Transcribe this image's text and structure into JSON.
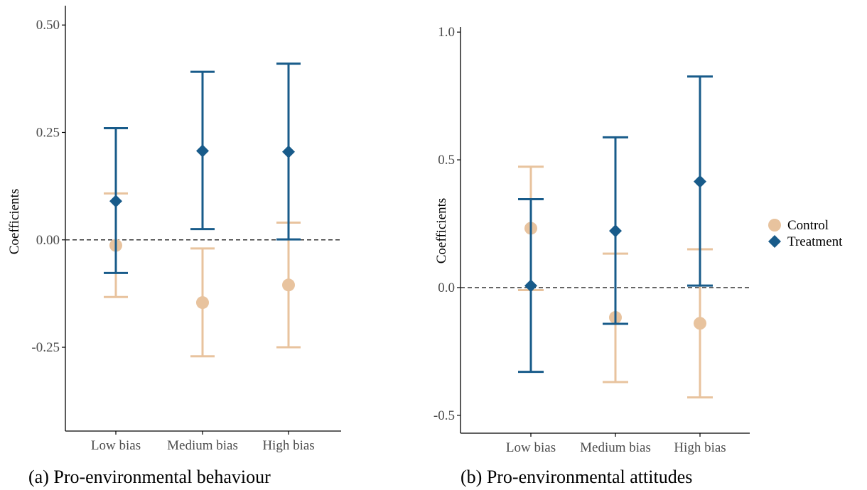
{
  "colors": {
    "control": "#e8c39e",
    "treatment": "#185b8a",
    "axis": "#000000",
    "zero_line": "#333333"
  },
  "legend": {
    "position": "right",
    "items": [
      {
        "label": "Control",
        "shape": "circle"
      },
      {
        "label": "Treatment",
        "shape": "diamond"
      }
    ]
  },
  "chart_data": [
    {
      "type": "errorbar",
      "caption": "(a) Pro-environmental behaviour",
      "xlabel": "",
      "ylabel": "Coefficients",
      "ylim": [
        -0.445,
        0.545
      ],
      "yticks": [
        0.5,
        0.25,
        0.0,
        -0.25
      ],
      "ytick_labels": [
        "0.50",
        "0.25",
        "0.00",
        "-0.25"
      ],
      "categories": [
        "Low bias",
        "Medium bias",
        "High bias"
      ],
      "reference_line": 0.0,
      "grid": false,
      "series": [
        {
          "name": "Control",
          "estimate": [
            -0.013,
            -0.146,
            -0.105
          ],
          "lower": [
            -0.133,
            -0.271,
            -0.25
          ],
          "upper": [
            0.108,
            -0.02,
            0.04
          ]
        },
        {
          "name": "Treatment",
          "estimate": [
            0.09,
            0.207,
            0.205
          ],
          "lower": [
            -0.077,
            0.025,
            0.001
          ],
          "upper": [
            0.26,
            0.391,
            0.41
          ]
        }
      ]
    },
    {
      "type": "errorbar",
      "caption": "(b) Pro-environmental attitudes",
      "xlabel": "",
      "ylabel": "Coefficients",
      "ylim": [
        -0.57,
        1.02
      ],
      "yticks": [
        1.0,
        0.5,
        0.0,
        -0.5
      ],
      "ytick_labels": [
        "1.0",
        "0.5",
        "0.0",
        "-0.5"
      ],
      "categories": [
        "Low bias",
        "Medium bias",
        "High bias"
      ],
      "reference_line": 0.0,
      "grid": false,
      "series": [
        {
          "name": "Control",
          "estimate": [
            0.232,
            -0.117,
            -0.14
          ],
          "lower": [
            -0.01,
            -0.37,
            -0.43
          ],
          "upper": [
            0.473,
            0.133,
            0.15
          ]
        },
        {
          "name": "Treatment",
          "estimate": [
            0.007,
            0.222,
            0.415
          ],
          "lower": [
            -0.33,
            -0.142,
            0.008
          ],
          "upper": [
            0.346,
            0.588,
            0.826
          ]
        }
      ]
    }
  ]
}
